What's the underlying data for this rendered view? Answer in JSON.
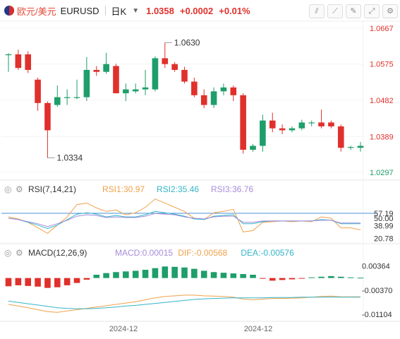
{
  "header": {
    "pair": "欧元/美元",
    "code": "EURUSD",
    "period": "日K",
    "price": "1.0358",
    "change": "+0.0002",
    "change_pct": "+0.01%",
    "colors": {
      "down": "#e0302b",
      "up": "#1e9e6a"
    },
    "tool_icons": [
      "draw-line-icon",
      "drawing-tools-icon",
      "pen-icon",
      "fullscreen-icon",
      "settings-icon"
    ]
  },
  "chart_data": [
    {
      "type": "candlestick",
      "title": "",
      "y_axis_ticks": [
        1.0667,
        1.0575,
        1.0482,
        1.0389,
        1.0297
      ],
      "ylim": [
        1.0297,
        1.0667
      ],
      "annotations": {
        "high_label": "1.0630",
        "low_label": "1.0334"
      },
      "x_ticks": [
        "2024-12",
        "2024-12"
      ],
      "candles": [
        {
          "open": 1.06,
          "high": 1.0603,
          "low": 1.0555,
          "close": 1.06
        },
        {
          "open": 1.06,
          "high": 1.0612,
          "low": 1.056,
          "close": 1.0565
        },
        {
          "open": 1.06,
          "high": 1.0608,
          "low": 1.0552,
          "close": 1.056
        },
        {
          "open": 1.0535,
          "high": 1.054,
          "low": 1.0455,
          "close": 1.0475
        },
        {
          "open": 1.0475,
          "high": 1.0479,
          "low": 1.0334,
          "close": 1.0405
        },
        {
          "open": 1.047,
          "high": 1.052,
          "low": 1.0465,
          "close": 1.049
        },
        {
          "open": 1.049,
          "high": 1.051,
          "low": 1.047,
          "close": 1.049
        },
        {
          "open": 1.049,
          "high": 1.0535,
          "low": 1.0485,
          "close": 1.049
        },
        {
          "open": 1.049,
          "high": 1.0593,
          "low": 1.048,
          "close": 1.056
        },
        {
          "open": 1.056,
          "high": 1.057,
          "low": 1.0545,
          "close": 1.0555
        },
        {
          "open": 1.0555,
          "high": 1.0604,
          "low": 1.055,
          "close": 1.0575
        },
        {
          "open": 1.057,
          "high": 1.0576,
          "low": 1.05,
          "close": 1.05
        },
        {
          "open": 1.05,
          "high": 1.0525,
          "low": 1.048,
          "close": 1.051
        },
        {
          "open": 1.0505,
          "high": 1.0525,
          "low": 1.05,
          "close": 1.051
        },
        {
          "open": 1.051,
          "high": 1.056,
          "low": 1.0495,
          "close": 1.0515
        },
        {
          "open": 1.051,
          "high": 1.0595,
          "low": 1.0505,
          "close": 1.059
        },
        {
          "open": 1.059,
          "high": 1.063,
          "low": 1.0565,
          "close": 1.0575
        },
        {
          "open": 1.0575,
          "high": 1.058,
          "low": 1.0555,
          "close": 1.056
        },
        {
          "open": 1.056,
          "high": 1.0568,
          "low": 1.0525,
          "close": 1.053
        },
        {
          "open": 1.053,
          "high": 1.054,
          "low": 1.049,
          "close": 1.0495
        },
        {
          "open": 1.0495,
          "high": 1.051,
          "low": 1.0462,
          "close": 1.047
        },
        {
          "open": 1.047,
          "high": 1.0515,
          "low": 1.0462,
          "close": 1.0505
        },
        {
          "open": 1.0505,
          "high": 1.0525,
          "low": 1.0495,
          "close": 1.0515
        },
        {
          "open": 1.0515,
          "high": 1.052,
          "low": 1.048,
          "close": 1.0495
        },
        {
          "open": 1.0495,
          "high": 1.05,
          "low": 1.0345,
          "close": 1.0355
        },
        {
          "open": 1.0355,
          "high": 1.037,
          "low": 1.035,
          "close": 1.0365
        },
        {
          "open": 1.0365,
          "high": 1.0445,
          "low": 1.035,
          "close": 1.043
        },
        {
          "open": 1.043,
          "high": 1.045,
          "low": 1.04,
          "close": 1.041
        },
        {
          "open": 1.041,
          "high": 1.042,
          "low": 1.0395,
          "close": 1.0405
        },
        {
          "open": 1.0405,
          "high": 1.0415,
          "low": 1.04,
          "close": 1.041
        },
        {
          "open": 1.041,
          "high": 1.0432,
          "low": 1.0405,
          "close": 1.0425
        },
        {
          "open": 1.0425,
          "high": 1.043,
          "low": 1.0415,
          "close": 1.0425
        },
        {
          "open": 1.0425,
          "high": 1.0458,
          "low": 1.041,
          "close": 1.0415
        },
        {
          "open": 1.0425,
          "high": 1.043,
          "low": 1.041,
          "close": 1.0415
        },
        {
          "open": 1.0415,
          "high": 1.042,
          "low": 1.035,
          "close": 1.036
        },
        {
          "open": 1.036,
          "high": 1.0365,
          "low": 1.0355,
          "close": 1.0362
        },
        {
          "open": 1.036,
          "high": 1.0375,
          "low": 1.035,
          "close": 1.0365
        }
      ]
    },
    {
      "type": "line",
      "title": "RSI(7,14,21)",
      "legend": [
        {
          "name": "RSI1:30.97",
          "color": "#f0a14a"
        },
        {
          "name": "RSI2:35.46",
          "color": "#33b5c9"
        },
        {
          "name": "RSI3:36.76",
          "color": "#a78bdb"
        }
      ],
      "y_axis_ticks": [
        "57.19",
        "50.00",
        "38.99",
        "20.78"
      ],
      "ylim": [
        15,
        85
      ],
      "reference_line": 57.19,
      "series": [
        {
          "color": "#f0a14a",
          "values": [
            52,
            49,
            44,
            36,
            28,
            40,
            52,
            70,
            72,
            65,
            60,
            62,
            55,
            58,
            66,
            78,
            72,
            66,
            60,
            50,
            48,
            58,
            60,
            63,
            30,
            32,
            44,
            45,
            46,
            45,
            46,
            45,
            52,
            50,
            36,
            36,
            33
          ]
        },
        {
          "color": "#33b5c9",
          "values": [
            50,
            48,
            44,
            40,
            35,
            40,
            48,
            56,
            58,
            56,
            52,
            54,
            52,
            52,
            55,
            60,
            58,
            56,
            53,
            49,
            48,
            53,
            54,
            55,
            42,
            42,
            45,
            46,
            46,
            46,
            46,
            46,
            48,
            47,
            42,
            42,
            42
          ]
        },
        {
          "color": "#a78bdb",
          "values": [
            50,
            48,
            45,
            42,
            38,
            42,
            47,
            53,
            55,
            54,
            51,
            52,
            51,
            51,
            53,
            57,
            56,
            55,
            52,
            50,
            49,
            52,
            53,
            53,
            44,
            44,
            46,
            46,
            46,
            46,
            46,
            46,
            47,
            47,
            43,
            43,
            43
          ]
        }
      ]
    },
    {
      "type": "bar",
      "title": "MACD(12,26,9)",
      "legend": [
        {
          "name": "MACD:0.00015",
          "color": "#a78bdb"
        },
        {
          "name": "DIF:-0.00568",
          "color": "#f0a14a"
        },
        {
          "name": "DEA:-0.00576",
          "color": "#33b5c9"
        }
      ],
      "y_axis_ticks": [
        0.00364,
        -0.0037,
        -0.01104
      ],
      "ylim": [
        -0.0125,
        0.0055
      ],
      "histogram": [
        -0.0025,
        -0.0022,
        -0.0024,
        -0.0026,
        -0.003,
        -0.0028,
        -0.0022,
        -0.0015,
        -0.0005,
        0.001,
        0.0015,
        0.0018,
        0.002,
        0.0022,
        0.0025,
        0.003,
        0.0035,
        0.0034,
        0.0032,
        0.0028,
        0.0022,
        0.0018,
        0.0016,
        0.0014,
        0.0012,
        0.001,
        -0.0002,
        -0.0008,
        -0.0006,
        -0.0004,
        -0.0002,
        0.0002,
        0.0004,
        0.0006,
        0.0004,
        0.0002,
        0.0001
      ],
      "series": [
        {
          "name": "DIF",
          "color": "#f0a14a",
          "values": [
            -0.008,
            -0.0085,
            -0.009,
            -0.0096,
            -0.0102,
            -0.0104,
            -0.01,
            -0.0096,
            -0.0092,
            -0.0088,
            -0.0084,
            -0.008,
            -0.0076,
            -0.0072,
            -0.0066,
            -0.006,
            -0.0056,
            -0.0054,
            -0.0052,
            -0.0052,
            -0.0054,
            -0.0055,
            -0.0056,
            -0.0058,
            -0.0064,
            -0.0066,
            -0.0064,
            -0.0062,
            -0.0062,
            -0.0061,
            -0.006,
            -0.0058,
            -0.0056,
            -0.0055,
            -0.0057,
            -0.0057,
            -0.0057
          ]
        },
        {
          "name": "DEA",
          "color": "#33b5c9",
          "values": [
            -0.007,
            -0.0074,
            -0.0078,
            -0.0082,
            -0.0086,
            -0.009,
            -0.0092,
            -0.0093,
            -0.0093,
            -0.0092,
            -0.009,
            -0.0088,
            -0.0085,
            -0.0083,
            -0.008,
            -0.0077,
            -0.0074,
            -0.0071,
            -0.0068,
            -0.0065,
            -0.0063,
            -0.0062,
            -0.0061,
            -0.006,
            -0.006,
            -0.006,
            -0.006,
            -0.0059,
            -0.0059,
            -0.0059,
            -0.0058,
            -0.0058,
            -0.0058,
            -0.0058,
            -0.0058,
            -0.0058,
            -0.0058
          ]
        }
      ]
    }
  ]
}
